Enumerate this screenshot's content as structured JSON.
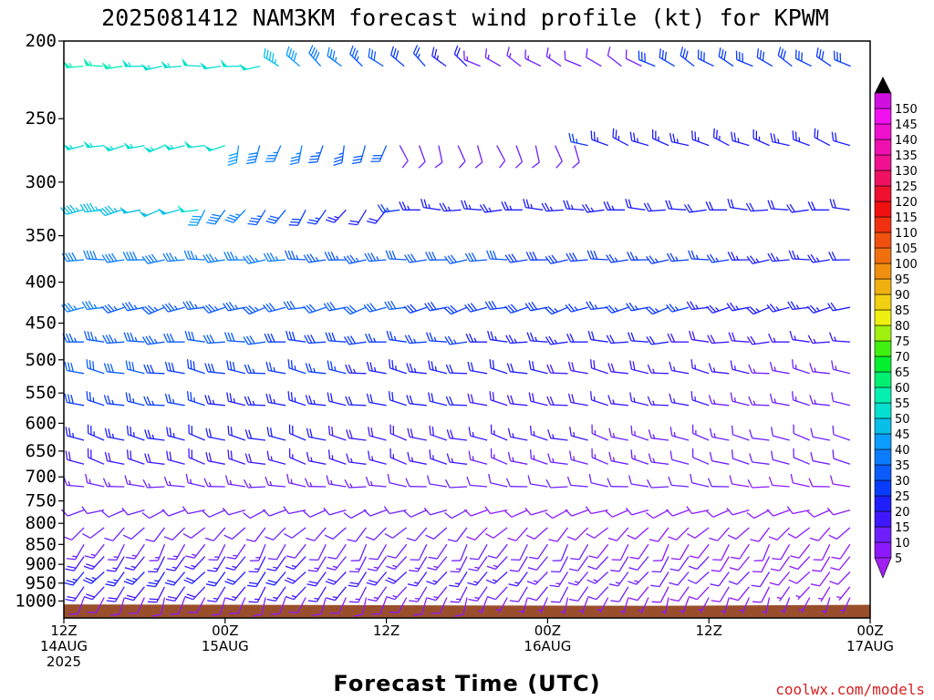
{
  "chart_data": {
    "type": "wind-barb-time-height",
    "title": "2025081412 NAM3KM forecast wind profile (kt) for KPWM",
    "xlabel": "Forecast Time (UTC)",
    "credit": "coolwx.com/models",
    "xlim_hours": [
      0,
      60
    ],
    "ylim_hPa": [
      1050,
      200
    ],
    "y_scale": "log-pressure",
    "y_ticks": [
      "200",
      "250",
      "300",
      "350",
      "400",
      "450",
      "500",
      "550",
      "600",
      "650",
      "700",
      "750",
      "800",
      "850",
      "900",
      "950",
      "1000"
    ],
    "x_ticks": [
      {
        "hour": 0,
        "lines": [
          "12Z",
          "14AUG",
          "2025"
        ]
      },
      {
        "hour": 12,
        "lines": [
          "00Z",
          "15AUG"
        ]
      },
      {
        "hour": 24,
        "lines": [
          "12Z"
        ]
      },
      {
        "hour": 36,
        "lines": [
          "00Z",
          "16AUG"
        ]
      },
      {
        "hour": 48,
        "lines": [
          "12Z"
        ]
      },
      {
        "hour": 60,
        "lines": [
          "00Z",
          "17AUG"
        ]
      }
    ],
    "colorbar": {
      "unit": "kt",
      "levels": [
        5,
        10,
        15,
        20,
        25,
        30,
        35,
        40,
        45,
        50,
        55,
        60,
        65,
        70,
        75,
        80,
        85,
        90,
        95,
        100,
        105,
        110,
        115,
        120,
        125,
        130,
        135,
        140,
        145,
        150
      ],
      "colors": [
        "#8c19ff",
        "#6f1fff",
        "#4018ff",
        "#1e1eff",
        "#0a3cff",
        "#0a5cff",
        "#0a7cff",
        "#0b9dff",
        "#07bfe8",
        "#05dfd0",
        "#03f0b0",
        "#02f070",
        "#02f030",
        "#40f010",
        "#a0f010",
        "#f0f010",
        "#f0d010",
        "#f0b010",
        "#f09010",
        "#f07010",
        "#f05010",
        "#f03010",
        "#f01010",
        "#f01030",
        "#f01060",
        "#f01090",
        "#f010b0",
        "#f010d0",
        "#f010f0",
        "#d010e0"
      ],
      "below_color": "#a020f0",
      "above_color": "#000000"
    },
    "terrain_color": "#9a4f2c",
    "terrain_hPa": [
      {
        "hour": 0,
        "p": 1010
      },
      {
        "hour": 12.4,
        "p": 1011
      },
      {
        "hour": 21.9,
        "p": 1012
      },
      {
        "hour": 29.8,
        "p": 1013
      },
      {
        "hour": 43.3,
        "p": 1014
      },
      {
        "hour": 54.8,
        "p": 1012
      },
      {
        "hour": 60,
        "p": 1011
      }
    ],
    "wind_levels": [
      {
        "p": 215,
        "hours": [
          0,
          14.6
        ],
        "dir": 265,
        "spd": 58,
        "spd_end": 50
      },
      {
        "p": 215,
        "hours": [
          16,
          30
        ],
        "dir": 310,
        "spd": 45,
        "spd_end": 20
      },
      {
        "p": 215,
        "hours": [
          31,
          43
        ],
        "dir": 300,
        "spd": 13,
        "spd_end": 12
      },
      {
        "p": 215,
        "hours": [
          44,
          60
        ],
        "dir": 300,
        "spd": 28,
        "spd_end": 30
      },
      {
        "p": 270,
        "hours": [
          0,
          12
        ],
        "dir": 255,
        "spd": 55,
        "spd_end": 52
      },
      {
        "p": 270,
        "hours": [
          13,
          24
        ],
        "dir": 195,
        "spd": 40,
        "spd_end": 30
      },
      {
        "p": 270,
        "hours": [
          25,
          38
        ],
        "dir": 160,
        "spd": 12,
        "spd_end": 10
      },
      {
        "p": 270,
        "hours": [
          39,
          60
        ],
        "dir": 290,
        "spd": 25,
        "spd_end": 22
      },
      {
        "p": 325,
        "hours": [
          0,
          10
        ],
        "dir": 255,
        "spd": 45,
        "spd_end": 50
      },
      {
        "p": 325,
        "hours": [
          10.5,
          24
        ],
        "dir": 215,
        "spd": 40,
        "spd_end": 20
      },
      {
        "p": 325,
        "hours": [
          25,
          60
        ],
        "dir": 270,
        "spd": 25,
        "spd_end": 20
      },
      {
        "p": 375,
        "hours": [
          0,
          60
        ],
        "dir": 265,
        "spd": 40,
        "spd_end": 22
      },
      {
        "p": 430,
        "hours": [
          0,
          60
        ],
        "dir": 255,
        "spd": 36,
        "spd_end": 22
      },
      {
        "p": 475,
        "hours": [
          0,
          60
        ],
        "dir": 270,
        "spd": 35,
        "spd_end": 15
      },
      {
        "p": 520,
        "hours": [
          0,
          60
        ],
        "dir": 280,
        "spd": 32,
        "spd_end": 12
      },
      {
        "p": 570,
        "hours": [
          0,
          60
        ],
        "dir": 280,
        "spd": 28,
        "spd_end": 12
      },
      {
        "p": 630,
        "hours": [
          0,
          60
        ],
        "dir": 285,
        "spd": 25,
        "spd_end": 10
      },
      {
        "p": 675,
        "hours": [
          0,
          60
        ],
        "dir": 285,
        "spd": 20,
        "spd_end": 10
      },
      {
        "p": 720,
        "hours": [
          0,
          60
        ],
        "dir": 275,
        "spd": 15,
        "spd_end": 9
      },
      {
        "p": 770,
        "hours": [
          0,
          60
        ],
        "dir": 250,
        "spd": 12,
        "spd_end": 8
      },
      {
        "p": 810,
        "hours": [
          0,
          60
        ],
        "dir": 225,
        "spd": 12,
        "spd_end": 8
      },
      {
        "p": 850,
        "hours": [
          0,
          60
        ],
        "dir": 210,
        "spd": 14,
        "spd_end": 8
      },
      {
        "p": 880,
        "hours": [
          0,
          60
        ],
        "dir": 215,
        "spd": 18,
        "spd_end": 8
      },
      {
        "p": 920,
        "hours": [
          0,
          60
        ],
        "dir": 220,
        "spd": 25,
        "spd_end": 8
      },
      {
        "p": 960,
        "hours": [
          0,
          60
        ],
        "dir": 215,
        "spd": 20,
        "spd_end": 6
      },
      {
        "p": 990,
        "hours": [
          0,
          60
        ],
        "dir": 200,
        "spd": 10,
        "spd_end": 5
      }
    ]
  }
}
